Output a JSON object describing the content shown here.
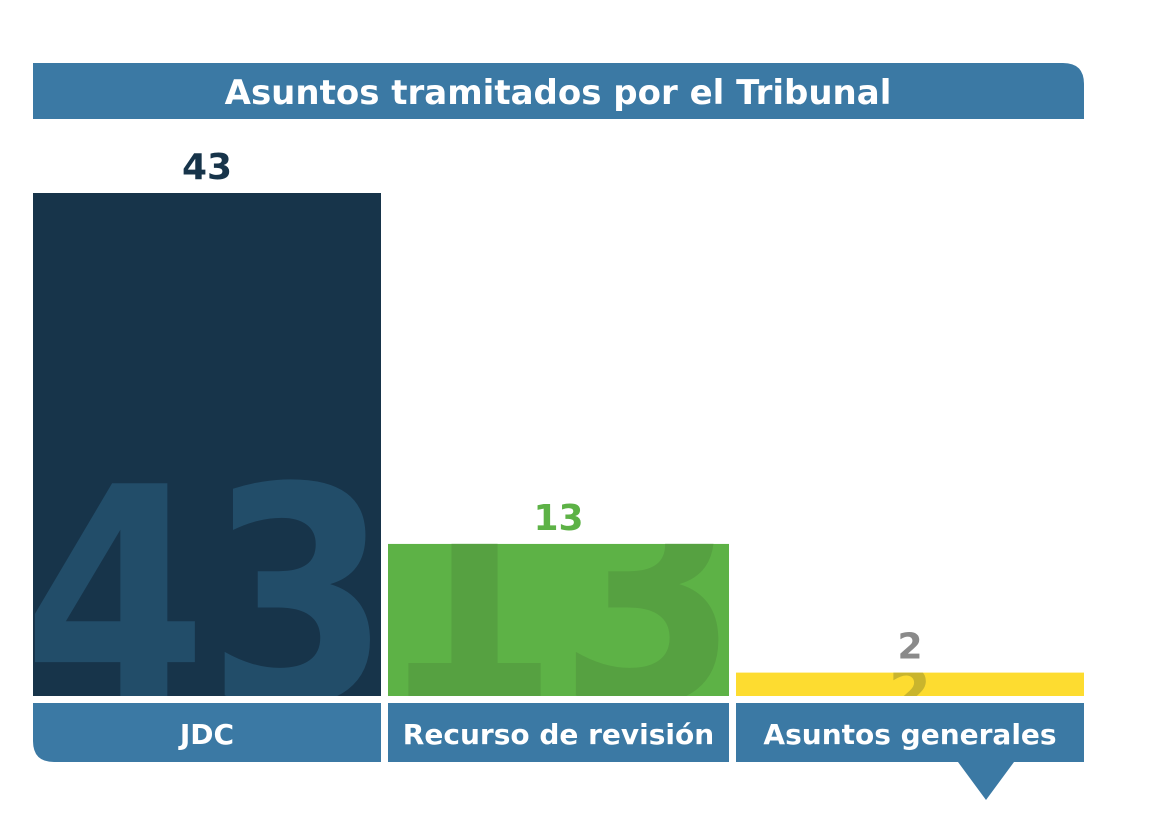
{
  "chart_data": {
    "type": "bar",
    "title": "Asuntos tramitados por el Tribunal",
    "categories": [
      "JDC",
      "Recurso de revisión",
      "Asuntos generales"
    ],
    "values": [
      43,
      13,
      2
    ],
    "ylim": [
      0,
      43
    ],
    "grid": false,
    "legend": "none",
    "colors": {
      "header": "#3b79a4",
      "bars": [
        "#17344a",
        "#5db246",
        "#fddc30"
      ],
      "watermarks": [
        "#224d69",
        "#56a141",
        "#c9b52d"
      ],
      "value_labels": [
        "#17344a",
        "#5db246",
        "#8a8a8a"
      ]
    }
  }
}
